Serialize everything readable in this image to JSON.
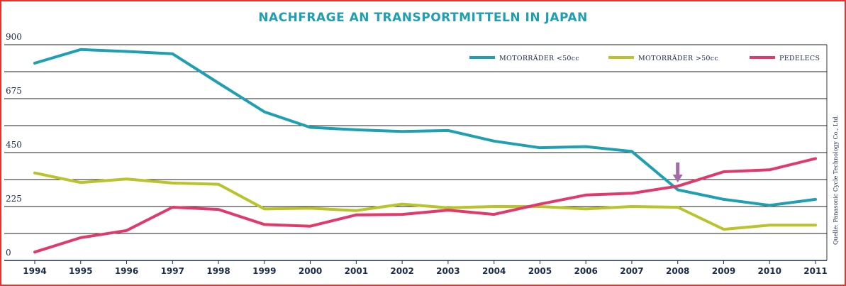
{
  "chart_data": {
    "type": "line",
    "title": "NACHFRAGE AN TRANSPORTMITTELN IN JAPAN",
    "categories": [
      "1994",
      "1995",
      "1996",
      "1997",
      "1998",
      "1999",
      "2000",
      "2001",
      "2002",
      "2003",
      "2004",
      "2005",
      "2006",
      "2007",
      "2008",
      "2009",
      "2010",
      "2011"
    ],
    "yticks": [
      "0",
      "225",
      "450",
      "675",
      "900"
    ],
    "ylim": [
      0,
      900
    ],
    "grid": true,
    "legend_position": "top-right",
    "series": [
      {
        "name": "MOTORRÄDER <50cc",
        "color": "#1e9fb2",
        "values": [
          823,
          880,
          872,
          862,
          740,
          620,
          555,
          545,
          538,
          542,
          498,
          470,
          475,
          455,
          295,
          255,
          230,
          255
        ]
      },
      {
        "name": "MOTORRÄDER >50cc",
        "color": "#b8c42a",
        "values": [
          365,
          325,
          340,
          323,
          318,
          215,
          218,
          208,
          235,
          220,
          225,
          225,
          215,
          225,
          222,
          130,
          147,
          147
        ]
      },
      {
        "name": "PEDELECS",
        "color": "#e03a6c",
        "values": [
          35,
          95,
          125,
          222,
          213,
          150,
          143,
          190,
          192,
          210,
          192,
          235,
          273,
          280,
          310,
          370,
          378,
          425
        ]
      }
    ],
    "annotation": {
      "type": "arrow",
      "category": "2008",
      "color": "#a26aa8"
    },
    "source": "Quelle: Panasonic Cycle Technology Co., Ltd."
  }
}
